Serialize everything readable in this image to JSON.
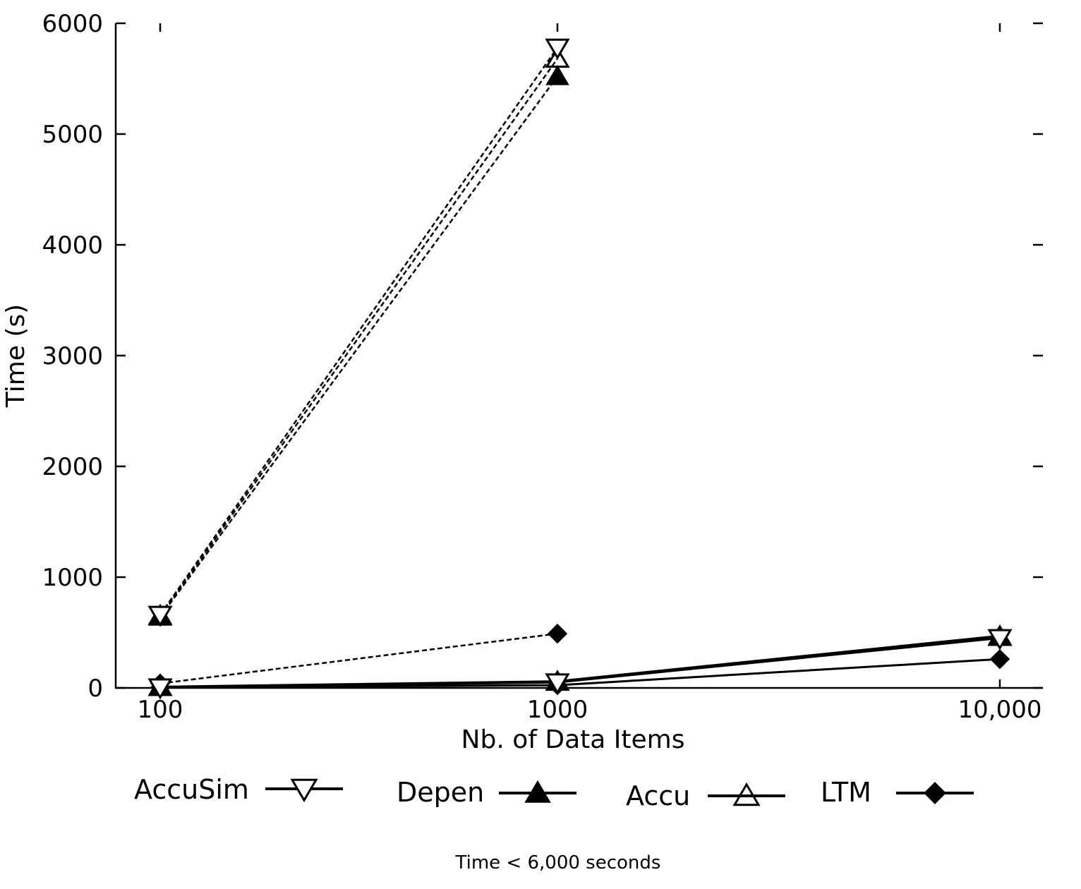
{
  "chart_data": {
    "type": "line",
    "xlabel": "Nb. of Data Items",
    "ylabel": "Time (s)",
    "x_scale": "log",
    "xlim": [
      100,
      10000
    ],
    "ylim": [
      0,
      6000
    ],
    "x_ticks": [
      {
        "value": 100,
        "label": "100"
      },
      {
        "value": 1000,
        "label": "1000"
      },
      {
        "value": 10000,
        "label": "10,000"
      }
    ],
    "y_ticks": [
      {
        "value": 0,
        "label": "0"
      },
      {
        "value": 1000,
        "label": "1000"
      },
      {
        "value": 2000,
        "label": "2000"
      },
      {
        "value": 3000,
        "label": "3000"
      },
      {
        "value": 4000,
        "label": "4000"
      },
      {
        "value": 5000,
        "label": "5000"
      },
      {
        "value": 6000,
        "label": "6000"
      }
    ],
    "grid": false,
    "legend_position": "bottom",
    "series": [
      {
        "name": "AccuSim",
        "marker": "triangle-down-open",
        "color": "#000000",
        "dashed": {
          "x": [
            100,
            1000
          ],
          "y": [
            660,
            5780
          ]
        },
        "solid": {
          "x": [
            100,
            1000,
            10000
          ],
          "y": [
            5,
            50,
            450
          ]
        }
      },
      {
        "name": "Depen",
        "marker": "triangle-up-filled",
        "color": "#000000",
        "dashed": {
          "x": [
            100,
            1000
          ],
          "y": [
            640,
            5520
          ]
        },
        "solid": {
          "x": [
            100,
            1000,
            10000
          ],
          "y": [
            10,
            60,
            470
          ]
        }
      },
      {
        "name": "Accu",
        "marker": "triangle-up-open",
        "color": "#000000",
        "dashed": {
          "x": [
            100,
            1000
          ],
          "y": [
            650,
            5680
          ]
        },
        "solid": {
          "x": [
            100,
            1000,
            10000
          ],
          "y": [
            8,
            55,
            460
          ]
        }
      },
      {
        "name": "LTM",
        "marker": "diamond-filled",
        "color": "#000000",
        "dashed": {
          "x": [
            100,
            1000
          ],
          "y": [
            40,
            490
          ]
        },
        "solid": {
          "x": [
            100,
            1000,
            10000
          ],
          "y": [
            3,
            25,
            260
          ]
        }
      }
    ],
    "caption": "Time < 6,000 seconds"
  }
}
